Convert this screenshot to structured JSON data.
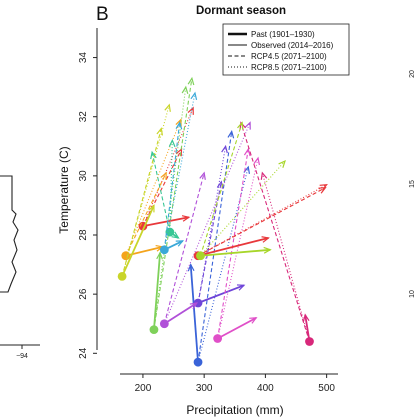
{
  "panel": {
    "letter": "B",
    "title": "Dormant season"
  },
  "left_panel_fragment": {
    "tick": "−94"
  },
  "right_panel_fragment": {
    "ticks": [
      "20",
      "15",
      "10"
    ]
  },
  "legend": {
    "entries": [
      {
        "label": "Past (1901–1930)",
        "style": "past"
      },
      {
        "label": "Observed (2014–2016)",
        "style": "observed"
      },
      {
        "label": "RCP4.5 (2071–2100)",
        "style": "rcp45"
      },
      {
        "label": "RCP8.5 (2071–2100)",
        "style": "rcp85"
      }
    ]
  },
  "chart_data": {
    "type": "scatter",
    "title": "Dormant season",
    "xlabel": "Precipitation (mm)",
    "ylabel": "Temperature (C)",
    "xlim": [
      125,
      530
    ],
    "ylim": [
      23.3,
      35
    ],
    "x_ticks": [
      "200",
      "300",
      "400",
      "500"
    ],
    "y_ticks": [
      "24",
      "26",
      "28",
      "30",
      "32",
      "34"
    ],
    "legend_position": "top-right",
    "series": [
      {
        "color": "#e8383b",
        "past": [
          200,
          28.3
        ],
        "observed": [
          275,
          28.6
        ],
        "rcp45": [
          263,
          30.9
        ],
        "rcp85": [
          282,
          32.3
        ]
      },
      {
        "color": "#f4a41c",
        "past": [
          172,
          27.3
        ],
        "observed": [
          232,
          27.6
        ],
        "rcp45": [
          238,
          30.1
        ],
        "rcp85": [
          262,
          31.9
        ]
      },
      {
        "color": "#c9d52a",
        "past": [
          166,
          26.6
        ],
        "observed": [
          218,
          29.0
        ],
        "rcp45": [
          230,
          31.6
        ],
        "rcp85": [
          243,
          32.4
        ]
      },
      {
        "color": "#7fd15a",
        "past": [
          218,
          24.8
        ],
        "observed": [
          228,
          27.4
        ],
        "rcp45": [
          280,
          33.3
        ],
        "rcp85": [
          270,
          33.0
        ]
      },
      {
        "color": "#38c795",
        "past": [
          244,
          28.1
        ],
        "observed": [
          258,
          27.9
        ],
        "rcp45": [
          215,
          30.8
        ],
        "rcp85": [
          248,
          31.2
        ]
      },
      {
        "color": "#3aa8d8",
        "past": [
          235,
          27.5
        ],
        "observed": [
          265,
          27.8
        ],
        "rcp45": [
          260,
          31.8
        ],
        "rcp85": [
          285,
          32.8
        ]
      },
      {
        "color": "#3a63d8",
        "past": [
          290,
          23.7
        ],
        "observed": [
          278,
          27.0
        ],
        "rcp45": [
          345,
          31.5
        ],
        "rcp85": [
          372,
          30.3
        ]
      },
      {
        "color": "#6f45d8",
        "past": [
          290,
          25.7
        ],
        "observed": [
          365,
          26.3
        ],
        "rcp45": [
          328,
          29.8
        ],
        "rcp85": [
          335,
          31.0
        ]
      },
      {
        "color": "#b050d8",
        "past": [
          235,
          25.0
        ],
        "observed": [
          288,
          25.7
        ],
        "rcp45": [
          300,
          30.1
        ],
        "rcp85": [
          375,
          31.8
        ]
      },
      {
        "color": "#e04fc8",
        "past": [
          322,
          24.5
        ],
        "observed": [
          385,
          25.2
        ],
        "rcp45": [
          372,
          30.9
        ],
        "rcp85": [
          388,
          30.6
        ]
      },
      {
        "color": "#d8287a",
        "past": [
          472,
          24.4
        ],
        "observed": [
          465,
          25.3
        ],
        "rcp45": [
          360,
          31.8
        ],
        "rcp85": [
          395,
          30.1
        ]
      },
      {
        "color": "#e8383b",
        "past": [
          290,
          27.3
        ],
        "observed": [
          405,
          27.9
        ],
        "rcp45": [
          498,
          29.6
        ],
        "rcp85": [
          500,
          29.7
        ]
      },
      {
        "color": "#a7d62a",
        "past": [
          294,
          27.3
        ],
        "observed": [
          408,
          27.5
        ],
        "rcp45": [
          362,
          31.8
        ],
        "rcp85": [
          432,
          30.5
        ]
      }
    ]
  }
}
